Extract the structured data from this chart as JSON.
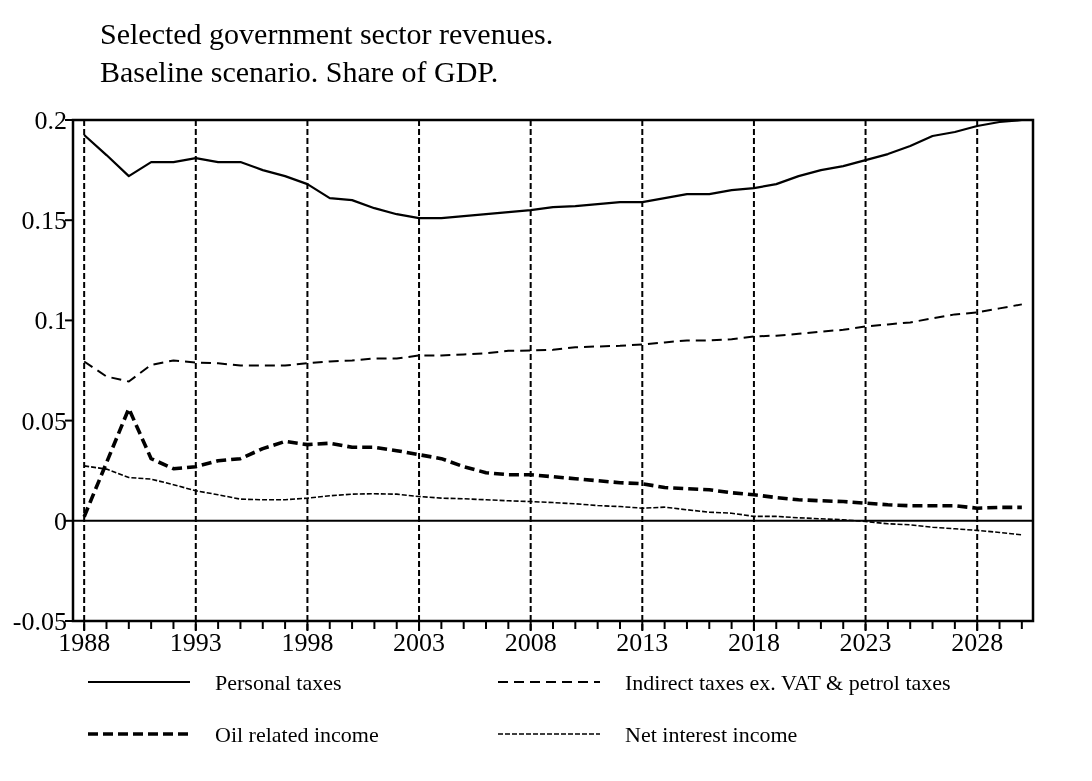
{
  "chart_data": {
    "type": "line",
    "title": "Selected government sector revenues.",
    "subtitle": "Baseline scenario. Share of GDP.",
    "x": [
      1988,
      1989,
      1990,
      1991,
      1992,
      1993,
      1994,
      1995,
      1996,
      1997,
      1998,
      1999,
      2000,
      2001,
      2002,
      2003,
      2004,
      2005,
      2006,
      2007,
      2008,
      2009,
      2010,
      2011,
      2012,
      2013,
      2014,
      2015,
      2016,
      2017,
      2018,
      2019,
      2020,
      2021,
      2022,
      2023,
      2024,
      2025,
      2026,
      2027,
      2028,
      2029,
      2030
    ],
    "series": [
      {
        "name": "Personal taxes",
        "color": "#000000",
        "line_style": "solid",
        "values": [
          0.1925,
          0.1825,
          0.172,
          0.179,
          0.179,
          0.181,
          0.179,
          0.179,
          0.175,
          0.172,
          0.168,
          0.161,
          0.16,
          0.156,
          0.153,
          0.151,
          0.151,
          0.152,
          0.153,
          0.154,
          0.155,
          0.1565,
          0.157,
          0.158,
          0.159,
          0.159,
          0.161,
          0.163,
          0.163,
          0.165,
          0.166,
          0.168,
          0.172,
          0.175,
          0.177,
          0.18,
          0.183,
          0.187,
          0.192,
          0.194,
          0.197,
          0.199,
          0.2
        ]
      },
      {
        "name": "Indirect taxes ex. VAT & petrol taxes",
        "color": "#000000",
        "line_style": "dashed",
        "values": [
          0.0795,
          0.072,
          0.0695,
          0.0778,
          0.08,
          0.079,
          0.0786,
          0.0775,
          0.0775,
          0.0775,
          0.0786,
          0.0795,
          0.08,
          0.081,
          0.081,
          0.0825,
          0.0825,
          0.083,
          0.0836,
          0.0848,
          0.085,
          0.0853,
          0.0866,
          0.087,
          0.0873,
          0.088,
          0.089,
          0.09,
          0.09,
          0.0906,
          0.092,
          0.0924,
          0.0933,
          0.0944,
          0.0953,
          0.097,
          0.098,
          0.099,
          0.101,
          0.103,
          0.104,
          0.106,
          0.108
        ]
      },
      {
        "name": "Oil related income",
        "color": "#000000",
        "line_style": "dashed",
        "values": [
          0.002,
          0.029,
          0.056,
          0.031,
          0.026,
          0.027,
          0.03,
          0.031,
          0.036,
          0.0396,
          0.038,
          0.0387,
          0.0367,
          0.0367,
          0.035,
          0.033,
          0.031,
          0.027,
          0.024,
          0.023,
          0.023,
          0.022,
          0.021,
          0.02,
          0.019,
          0.0185,
          0.0166,
          0.016,
          0.0155,
          0.014,
          0.013,
          0.0116,
          0.0105,
          0.01,
          0.0096,
          0.0088,
          0.008,
          0.0075,
          0.0075,
          0.0075,
          0.0063,
          0.0067,
          0.0067
        ]
      },
      {
        "name": "Net interest income",
        "color": "#000000",
        "line_style": "dashed",
        "values": [
          0.0274,
          0.0258,
          0.0216,
          0.0208,
          0.018,
          0.015,
          0.013,
          0.0108,
          0.0105,
          0.0105,
          0.0113,
          0.0125,
          0.0133,
          0.0135,
          0.0133,
          0.0121,
          0.0113,
          0.011,
          0.0105,
          0.01,
          0.0096,
          0.0091,
          0.0085,
          0.0076,
          0.0071,
          0.0063,
          0.0068,
          0.0055,
          0.0043,
          0.0038,
          0.0022,
          0.0022,
          0.0015,
          0.001,
          0.0005,
          -0.0003,
          -0.0015,
          -0.002,
          -0.0032,
          -0.004,
          -0.0048,
          -0.0058,
          -0.007
        ]
      }
    ],
    "xlim": [
      1987.5,
      2030.5
    ],
    "xticks": [
      1988,
      {
        "value": 1989,
        "label": null
      },
      {
        "value": 1990,
        "label": null
      },
      {
        "value": 1991,
        "label": null
      },
      {
        "value": 1992,
        "label": null
      },
      1993,
      {
        "value": 1994,
        "label": null
      },
      {
        "value": 1995,
        "label": null
      },
      {
        "value": 1996,
        "label": null
      },
      {
        "value": 1997,
        "label": null
      },
      1998,
      {
        "value": 1999,
        "label": null
      },
      {
        "value": 2000,
        "label": null
      },
      {
        "value": 2001,
        "label": null
      },
      {
        "value": 2002,
        "label": null
      },
      2003,
      {
        "value": 2004,
        "label": null
      },
      {
        "value": 2005,
        "label": null
      },
      {
        "value": 2006,
        "label": null
      },
      {
        "value": 2007,
        "label": null
      },
      2008,
      {
        "value": 2009,
        "label": null
      },
      {
        "value": 2010,
        "label": null
      },
      {
        "value": 2011,
        "label": null
      },
      {
        "value": 2012,
        "label": null
      },
      2013,
      {
        "value": 2014,
        "label": null
      },
      {
        "value": 2015,
        "label": null
      },
      {
        "value": 2016,
        "label": null
      },
      {
        "value": 2017,
        "label": null
      },
      2018,
      {
        "value": 2019,
        "label": null
      },
      {
        "value": 2020,
        "label": null
      },
      {
        "value": 2021,
        "label": null
      },
      {
        "value": 2022,
        "label": null
      },
      2023,
      {
        "value": 2024,
        "label": null
      },
      {
        "value": 2025,
        "label": null
      },
      {
        "value": 2026,
        "label": null
      },
      {
        "value": 2027,
        "label": null
      },
      2028,
      {
        "value": 2029,
        "label": null
      },
      {
        "value": 2030,
        "label": null
      }
    ],
    "ylim": [
      -0.05,
      0.2
    ],
    "yticks": [
      -0.05,
      0,
      0.05,
      0.1,
      0.15,
      0.2
    ],
    "ref_lines": [
      {
        "axis": "y",
        "value": 0,
        "label": null,
        "color": "#000000",
        "line_style": "solid"
      }
    ],
    "grid": "x",
    "legend": "bottom"
  }
}
